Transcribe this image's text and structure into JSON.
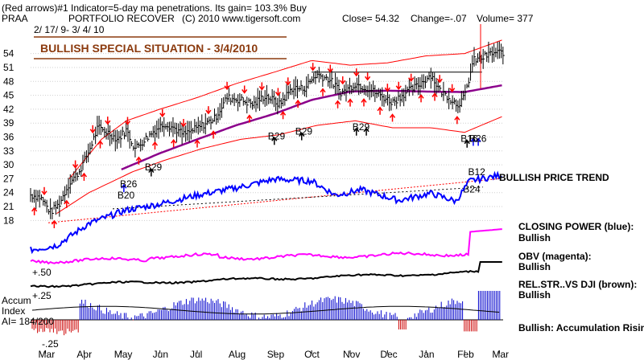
{
  "header": {
    "line1": "(Red arrows)#1 Indicator=5-day ma penetrations. Its gain= 103.3% Buy",
    "symbol": "PRAA",
    "name": "PORTFOLIO RECOVER",
    "copyright": "(C) 2010 www.tigersoft.com",
    "close": "Close= 54.32",
    "change": "Change=-.07",
    "volume": "Volume= 377",
    "date_range": "2/ 17/ 9- 3/ 4/ 10"
  },
  "banner": {
    "text": "BULLISH SPECIAL SITUATION - 3/4/2010",
    "text_color": "#8b3a0e",
    "border_color": "#8b3a0e"
  },
  "colors": {
    "price": "#000000",
    "bands": "#ff0000",
    "moving_average": "#8b008b",
    "closing_power": "#0000ff",
    "obv": "#ff00ff",
    "rel_strength": "#000000",
    "accum_pos": "#0000cc",
    "accum_neg": "#cc0000",
    "signal_red": "#ff0000",
    "signal_black": "#000000",
    "signal_blue": "#0000ff"
  },
  "labels": {
    "trend": "BULLISH PRICE TREND",
    "cp_title": "CLOSING POWER (blue):",
    "cp_status": "Bullish",
    "obv_title": "OBV (magenta):",
    "obv_status": "Bullish",
    "rel_title": "REL.STR..VS DJI (brown):",
    "rel_status": "Bullish",
    "accum_status": "Bullish: Accumulation Rising",
    "accum_title_1": "Accum",
    "accum_title_2": "Index",
    "ai": "AI= 184/200",
    "plus50": "+.50",
    "plus25": "+.25",
    "minus25": "-.25"
  },
  "signals": [
    {
      "text": "B29",
      "x": "2009-09-01",
      "y": 35.5
    },
    {
      "text": "B29",
      "x": "2009-09-23",
      "y": 36.5
    },
    {
      "text": "B29",
      "x": "2009-11-08",
      "y": 37.5
    },
    {
      "text": "B29",
      "x": "2009-05-25",
      "y": 28.8
    },
    {
      "text": "B26",
      "x": "2009-05-05",
      "y": 25.2
    },
    {
      "text": "B20",
      "x": "2009-05-03",
      "y": 22.7
    },
    {
      "text": "B16",
      "x": "2010-02-03",
      "y": 35.0
    },
    {
      "text": "B26",
      "x": "2010-02-10",
      "y": 35.0
    },
    {
      "text": "B12",
      "x": "2010-02-09",
      "y": 27.8
    },
    {
      "text": "B24",
      "x": "2010-02-05",
      "y": 24.0
    }
  ],
  "chart_data": {
    "type": "line",
    "title": "PORTFOLIO RECOVER",
    "xlabel": "",
    "ylabel": "",
    "x_range": [
      "2009-02-17",
      "2010-03-04"
    ],
    "month_ticks": [
      "Mar",
      "Apr",
      "May",
      "Jun",
      "Jul",
      "Aug",
      "Sep",
      "Oct",
      "Nov",
      "Dec",
      "Jan",
      "Feb",
      "Mar"
    ],
    "month_dates": [
      "2009-03-01",
      "2009-04-01",
      "2009-05-01",
      "2009-06-01",
      "2009-07-01",
      "2009-08-01",
      "2009-09-01",
      "2009-10-01",
      "2009-11-01",
      "2009-12-01",
      "2010-01-01",
      "2010-02-01",
      "2010-03-01"
    ],
    "price_ylim": [
      16.5,
      55.5
    ],
    "price_ticks": [
      18,
      21,
      24,
      27,
      30,
      33,
      36,
      39,
      42,
      45,
      48,
      51,
      54
    ],
    "grid": true,
    "price_anchors": [
      [
        "2009-02-17",
        23.5
      ],
      [
        "2009-02-25",
        23.0
      ],
      [
        "2009-03-05",
        19.8
      ],
      [
        "2009-03-12",
        21.5
      ],
      [
        "2009-03-20",
        26.0
      ],
      [
        "2009-03-28",
        28.5
      ],
      [
        "2009-04-05",
        33.0
      ],
      [
        "2009-04-12",
        38.0
      ],
      [
        "2009-04-20",
        37.0
      ],
      [
        "2009-04-28",
        35.5
      ],
      [
        "2009-05-05",
        37.5
      ],
      [
        "2009-05-12",
        33.5
      ],
      [
        "2009-05-20",
        35.5
      ],
      [
        "2009-05-28",
        37.5
      ],
      [
        "2009-06-05",
        39.0
      ],
      [
        "2009-06-12",
        38.0
      ],
      [
        "2009-06-20",
        36.5
      ],
      [
        "2009-06-28",
        37.5
      ],
      [
        "2009-07-05",
        38.5
      ],
      [
        "2009-07-15",
        40.0
      ],
      [
        "2009-07-25",
        44.5
      ],
      [
        "2009-08-05",
        44.0
      ],
      [
        "2009-08-15",
        43.0
      ],
      [
        "2009-08-25",
        45.0
      ],
      [
        "2009-09-05",
        43.0
      ],
      [
        "2009-09-15",
        46.5
      ],
      [
        "2009-09-25",
        46.5
      ],
      [
        "2009-10-05",
        49.5
      ],
      [
        "2009-10-15",
        48.5
      ],
      [
        "2009-10-25",
        45.5
      ],
      [
        "2009-11-05",
        47.5
      ],
      [
        "2009-11-15",
        46.5
      ],
      [
        "2009-11-25",
        45.0
      ],
      [
        "2009-12-05",
        43.5
      ],
      [
        "2009-12-15",
        45.5
      ],
      [
        "2009-12-25",
        47.0
      ],
      [
        "2010-01-05",
        49.5
      ],
      [
        "2010-01-12",
        46.0
      ],
      [
        "2010-01-20",
        44.5
      ],
      [
        "2010-01-26",
        43.0
      ],
      [
        "2010-02-01",
        44.5
      ],
      [
        "2010-02-08",
        52.5
      ],
      [
        "2010-02-15",
        53.0
      ],
      [
        "2010-02-22",
        54.0
      ],
      [
        "2010-03-04",
        54.32
      ]
    ],
    "ma_anchors": [
      [
        "2009-05-01",
        29.0
      ],
      [
        "2009-06-01",
        32.5
      ],
      [
        "2009-07-01",
        35.5
      ],
      [
        "2009-08-01",
        38.5
      ],
      [
        "2009-09-01",
        41.0
      ],
      [
        "2009-10-01",
        44.0
      ],
      [
        "2009-11-01",
        45.8
      ],
      [
        "2009-12-01",
        46.0
      ],
      [
        "2010-01-01",
        45.8
      ],
      [
        "2010-02-01",
        45.7
      ],
      [
        "2010-03-04",
        47.2
      ]
    ],
    "upper_band_anchors": [
      [
        "2009-03-20",
        27.0
      ],
      [
        "2009-04-15",
        35.5
      ],
      [
        "2009-05-05",
        39.5
      ],
      [
        "2009-06-01",
        42.0
      ],
      [
        "2009-07-01",
        44.5
      ],
      [
        "2009-08-01",
        47.5
      ],
      [
        "2009-09-01",
        50.0
      ],
      [
        "2009-10-01",
        52.5
      ],
      [
        "2009-11-01",
        51.5
      ],
      [
        "2009-12-01",
        52.0
      ],
      [
        "2010-01-01",
        53.5
      ],
      [
        "2010-02-01",
        54.0
      ],
      [
        "2010-03-04",
        57.0
      ]
    ],
    "lower_band_anchors": [
      [
        "2009-03-10",
        19.5
      ],
      [
        "2009-04-05",
        24.0
      ],
      [
        "2009-05-10",
        28.5
      ],
      [
        "2009-06-05",
        31.0
      ],
      [
        "2009-07-05",
        33.5
      ],
      [
        "2009-08-05",
        35.5
      ],
      [
        "2009-09-05",
        36.5
      ],
      [
        "2009-10-05",
        38.5
      ],
      [
        "2009-11-05",
        39.5
      ],
      [
        "2009-12-05",
        38.0
      ],
      [
        "2010-01-05",
        38.0
      ],
      [
        "2010-02-01",
        37.0
      ],
      [
        "2010-03-04",
        40.5
      ]
    ],
    "support_line": {
      "from": [
        "2009-10-01",
        50.0
      ],
      "to": [
        "2010-02-15",
        50.0
      ]
    },
    "signal_line_1": {
      "from": [
        "2010-01-25",
        50.0
      ],
      "to": [
        "2010-02-20",
        50.0
      ]
    },
    "panels": [
      {
        "name": "Closing Power",
        "anchors": [
          [
            "2009-02-17",
            0.1
          ],
          [
            "2009-03-10",
            0.15
          ],
          [
            "2009-04-05",
            0.4
          ],
          [
            "2009-05-05",
            0.55
          ],
          [
            "2009-06-01",
            0.62
          ],
          [
            "2009-07-01",
            0.72
          ],
          [
            "2009-08-01",
            0.8
          ],
          [
            "2009-09-01",
            0.9
          ],
          [
            "2009-10-01",
            0.88
          ],
          [
            "2009-10-20",
            0.72
          ],
          [
            "2009-11-10",
            0.78
          ],
          [
            "2009-12-10",
            0.66
          ],
          [
            "2010-01-05",
            0.74
          ],
          [
            "2010-01-25",
            0.65
          ],
          [
            "2010-02-05",
            0.88
          ],
          [
            "2010-03-04",
            0.95
          ]
        ]
      }
    ]
  }
}
